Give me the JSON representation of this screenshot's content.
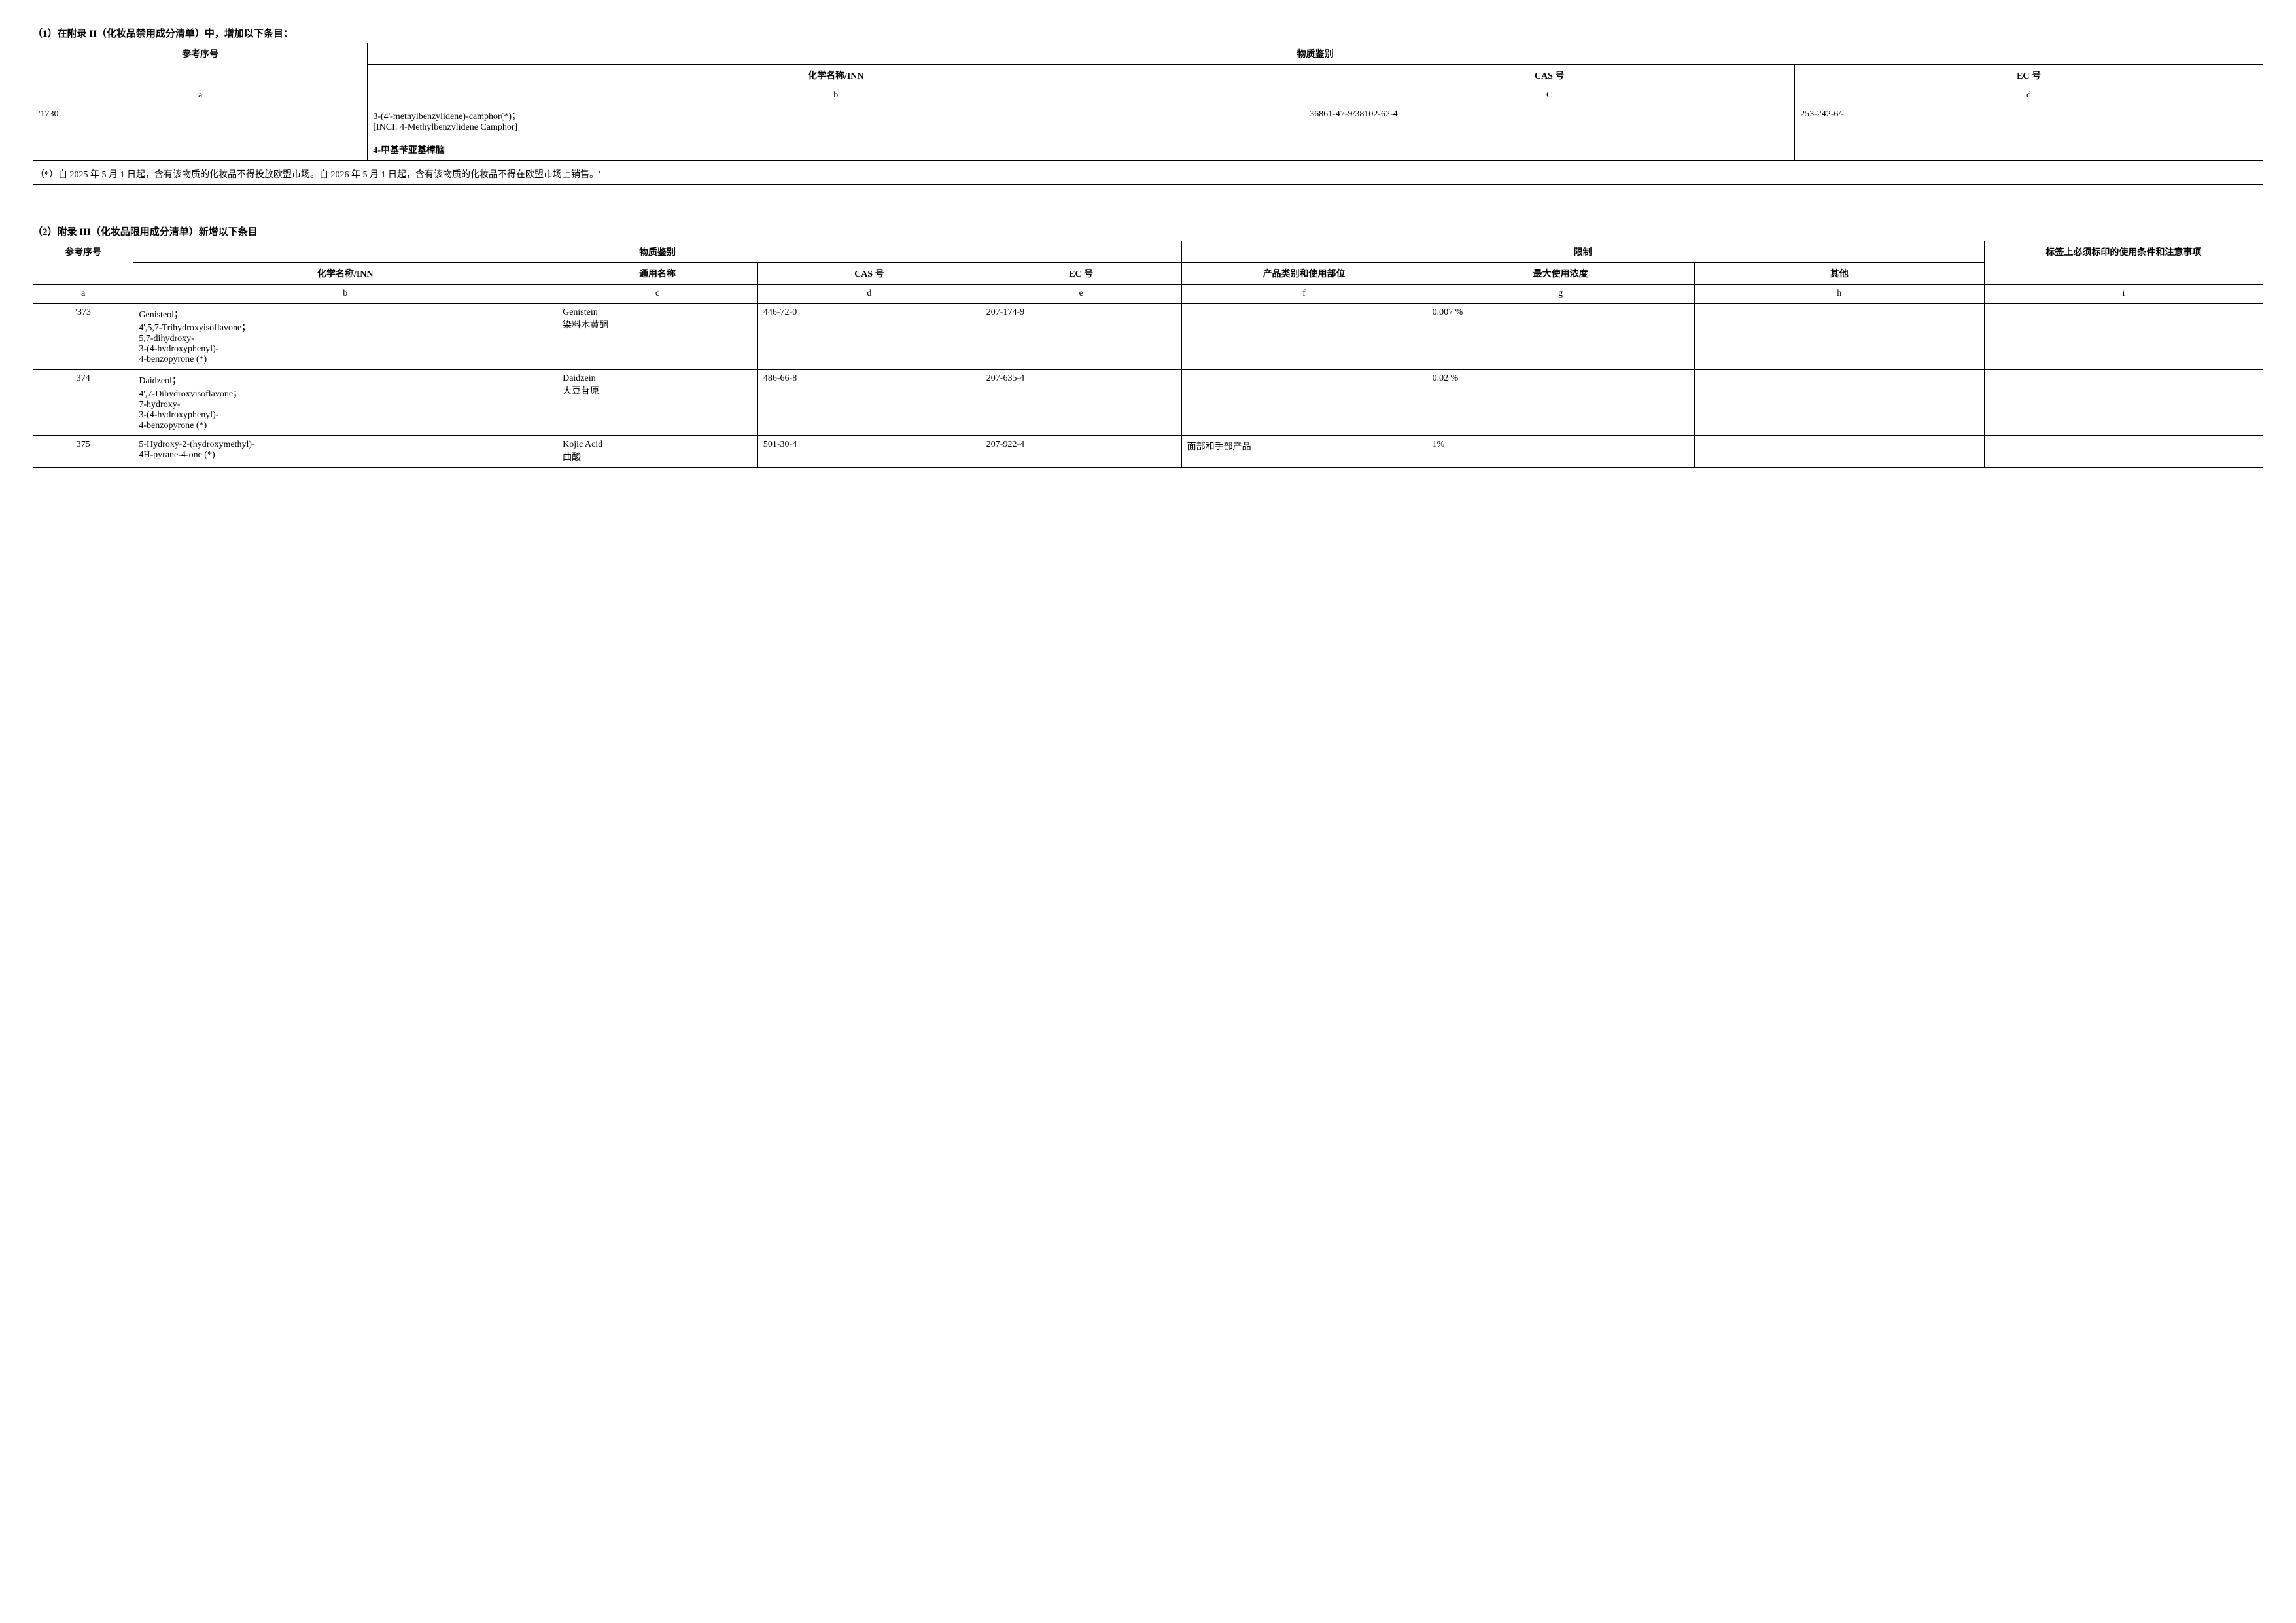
{
  "section1": {
    "title": "（1）在附录 II（化妆品禁用成分清单）中，增加以下条目：",
    "headers": {
      "ref": "参考序号",
      "substance": "物质鉴别",
      "chem": "化学名称/INN",
      "cas": "CAS 号",
      "ec": "EC 号"
    },
    "letter_row": {
      "a": "a",
      "b": "b",
      "c": "C",
      "d": "d"
    },
    "row": {
      "a": "'1730",
      "b_line1": "3-(4'-methylbenzylidene)-camphor(*)；",
      "b_line2": "[INCI: 4-Methylbenzylidene Camphor]",
      "b_line3": "4-甲基苄亚基樟脑",
      "c": "36861-47-9/38102-62-4",
      "d": "253-242-6/-"
    },
    "footnote": "（*）自 2025 年 5 月 1 日起，含有该物质的化妆品不得投放欧盟市场。自 2026 年 5 月 1 日起，含有该物质的化妆品不得在欧盟市场上销售。'"
  },
  "section2": {
    "title": "（2）附录 III（化妆品限用成分清单）新增以下条目",
    "headers": {
      "ref": "参考序号",
      "substance": "物质鉴别",
      "restriction": "限制",
      "label": "标签上必须标印的使用条件和注意事项",
      "chem": "化学名称/INN",
      "common": "通用名称",
      "cas": "CAS 号",
      "ec": "EC 号",
      "product": "产品类别和使用部位",
      "maxconc": "最大使用浓度",
      "other": "其他"
    },
    "letter_row": {
      "a": "a",
      "b": "b",
      "c": "c",
      "d": "d",
      "e": "e",
      "f": "f",
      "g": "g",
      "h": "h",
      "i": "i"
    },
    "rows": [
      {
        "a": "'373",
        "b": "Genisteol；\n4',5,7-Trihydroxyisoflavone；\n5,7-dihydroxy-\n3-(4-hydroxyphenyl)-\n4-benzopyrone (*)",
        "c": "Genistein\n染料木黄酮",
        "d": "446-72-0",
        "e": "207-174-9",
        "f": "",
        "g": "0.007 %",
        "h": "",
        "i": ""
      },
      {
        "a": "374",
        "b": "Daidzeol；\n4',7-Dihydroxyisoflavone；\n7-hydroxy-\n3-(4-hydroxyphenyl)-\n4-benzopyrone (*)",
        "c": "Daidzein\n大豆苷原",
        "d": "486-66-8",
        "e": "207-635-4",
        "f": "",
        "g": "0.02 %",
        "h": "",
        "i": ""
      },
      {
        "a": "375",
        "b": "5-Hydroxy-2-(hydroxymethyl)-\n4H-pyrane-4-one (*)",
        "c": "Kojic Acid\n曲酸",
        "d": "501-30-4",
        "e": "207-922-4",
        "f": "面部和手部产品",
        "g": "1%",
        "h": "",
        "i": ""
      }
    ]
  }
}
